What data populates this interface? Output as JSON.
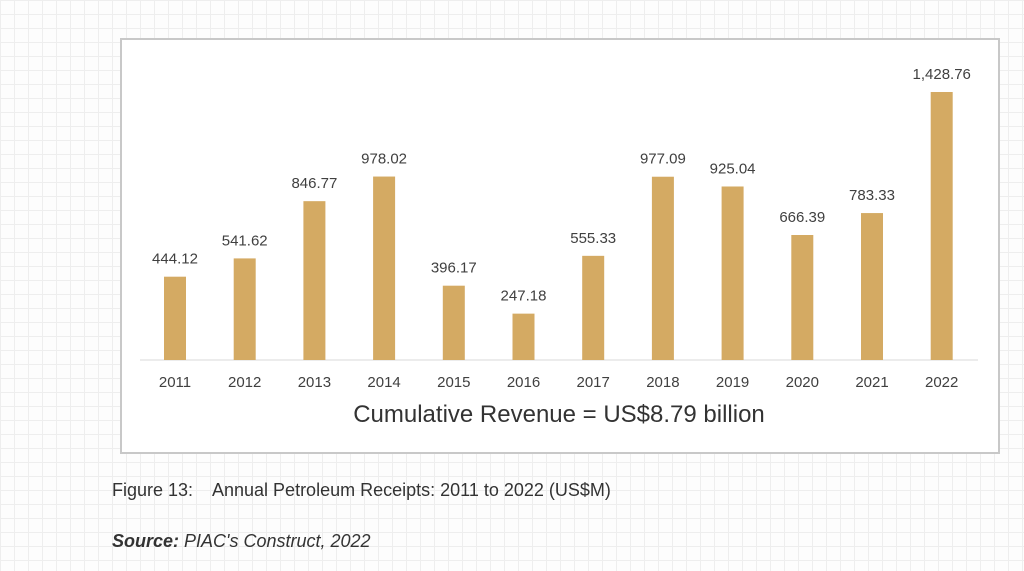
{
  "chart_data": {
    "type": "bar",
    "categories": [
      "2011",
      "2012",
      "2013",
      "2014",
      "2015",
      "2016",
      "2017",
      "2018",
      "2019",
      "2020",
      "2021",
      "2022"
    ],
    "values": [
      444.12,
      541.62,
      846.77,
      978.02,
      396.17,
      247.18,
      555.33,
      977.09,
      925.04,
      666.39,
      783.33,
      1428.76
    ],
    "data_labels": [
      "444.12",
      "541.62",
      "846.77",
      "978.02",
      "396.17",
      "247.18",
      "555.33",
      "977.09",
      "925.04",
      "666.39",
      "783.33",
      "1,428.76"
    ],
    "annotation": "Cumulative Revenue = US$8.79 billion",
    "bar_color": "#d4aa63",
    "grid": false,
    "ylim": [
      0,
      1428.76
    ]
  },
  "caption": {
    "number": "Figure 13:",
    "title": "Annual Petroleum Receipts: 2011 to 2022 (US$M)"
  },
  "source": {
    "label": "Source:",
    "text": "PIAC's Construct, 2022"
  }
}
